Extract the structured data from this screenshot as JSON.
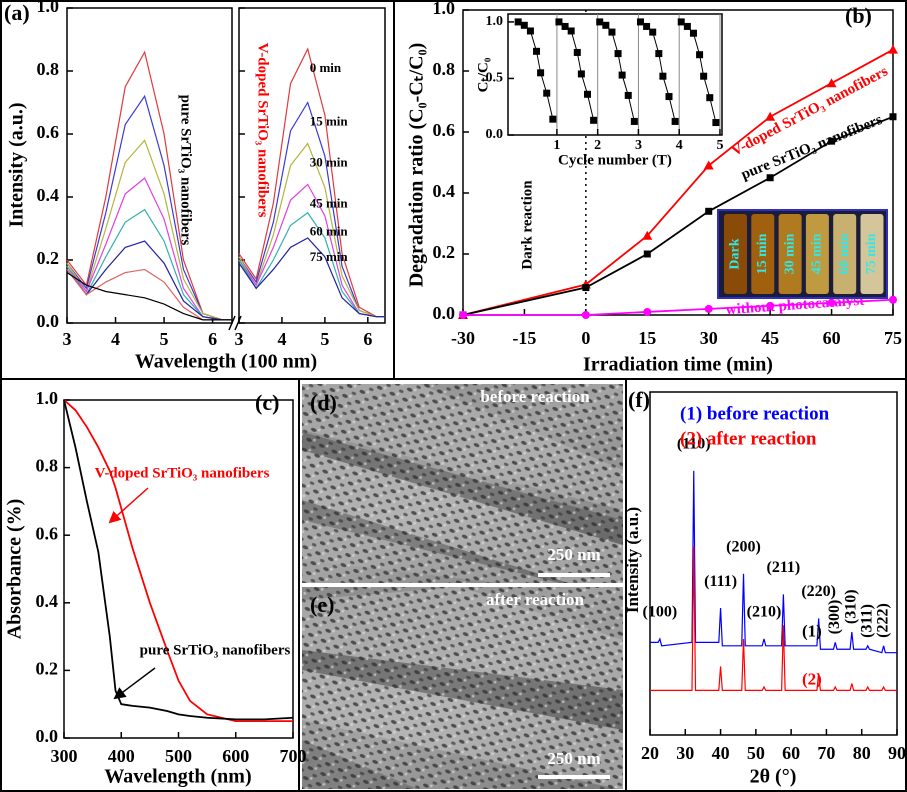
{
  "chart_data": [
    {
      "type": "line",
      "label": "(a)",
      "ylabel": "Intensity (a.u.)",
      "xlabel": "Wavelength (100 nm)",
      "ylim": [
        0,
        1.0
      ],
      "yticks": [
        {
          "value": 0,
          "label": "0.0"
        },
        0.2,
        0.4,
        0.6,
        0.8,
        {
          "value": 1,
          "label": "1.0"
        }
      ],
      "panels": [
        {
          "title": "pure SrTiO₃ nanofibers",
          "title_color": "#000000",
          "xlim": [
            3,
            6.4
          ],
          "xticks": [
            3,
            4,
            5,
            6
          ],
          "x": [
            3,
            3.4,
            3.8,
            4.2,
            4.6,
            5.0,
            5.4,
            5.8,
            6.2,
            6.4
          ],
          "series": [
            {
              "color": "#e0393b",
              "values": [
                0.2,
                0.12,
                0.4,
                0.75,
                0.86,
                0.6,
                0.2,
                0.03,
                0.01,
                0.01
              ]
            },
            {
              "color": "#3a3ad8",
              "values": [
                0.19,
                0.11,
                0.35,
                0.63,
                0.72,
                0.5,
                0.17,
                0.03,
                0.01,
                0.01
              ]
            },
            {
              "color": "#b5b53a",
              "values": [
                0.19,
                0.1,
                0.3,
                0.51,
                0.58,
                0.41,
                0.14,
                0.03,
                0.01,
                0.01
              ]
            },
            {
              "color": "#e040e0",
              "values": [
                0.18,
                0.1,
                0.25,
                0.41,
                0.46,
                0.33,
                0.11,
                0.02,
                0.01,
                0.01
              ]
            },
            {
              "color": "#30b0b0",
              "values": [
                0.18,
                0.09,
                0.21,
                0.32,
                0.36,
                0.26,
                0.09,
                0.02,
                0.01,
                0.01
              ]
            },
            {
              "color": "#2020a0",
              "values": [
                0.17,
                0.09,
                0.17,
                0.24,
                0.26,
                0.19,
                0.07,
                0.02,
                0.01,
                0.01
              ]
            },
            {
              "color": "#e06060",
              "values": [
                0.17,
                0.09,
                0.13,
                0.16,
                0.17,
                0.13,
                0.05,
                0.01,
                0.01,
                0.01
              ]
            },
            {
              "color": "#000000",
              "values": [
                0.16,
                0.12,
                0.1,
                0.09,
                0.08,
                0.06,
                0.03,
                0.01,
                0.01,
                0.01
              ]
            }
          ]
        },
        {
          "title": "V-doped SrTiO₃ nanofibers",
          "title_color": "#ff0000",
          "xlim": [
            3,
            6.4
          ],
          "xticks": [
            3,
            4,
            5,
            6
          ],
          "x": [
            3,
            3.4,
            3.8,
            4.2,
            4.6,
            5.0,
            5.4,
            5.8,
            6.2,
            6.4
          ],
          "series": [
            {
              "name": "0 min",
              "color": "#e0393b",
              "values": [
                0.22,
                0.14,
                0.38,
                0.76,
                0.87,
                0.66,
                0.22,
                0.05,
                0.02,
                0.02
              ]
            },
            {
              "name": "15 min",
              "color": "#3a3ad8",
              "values": [
                0.21,
                0.13,
                0.32,
                0.61,
                0.7,
                0.53,
                0.18,
                0.04,
                0.02,
                0.02
              ]
            },
            {
              "name": "30 min",
              "color": "#b5b53a",
              "values": [
                0.21,
                0.12,
                0.28,
                0.5,
                0.57,
                0.43,
                0.15,
                0.04,
                0.02,
                0.02
              ]
            },
            {
              "name": "45 min",
              "color": "#e040e0",
              "values": [
                0.2,
                0.12,
                0.24,
                0.39,
                0.44,
                0.34,
                0.12,
                0.03,
                0.02,
                0.02
              ]
            },
            {
              "name": "60 min",
              "color": "#30b0b0",
              "values": [
                0.2,
                0.11,
                0.2,
                0.31,
                0.35,
                0.27,
                0.1,
                0.03,
                0.02,
                0.02
              ]
            },
            {
              "name": "75 min",
              "color": "#2020a0",
              "values": [
                0.19,
                0.11,
                0.17,
                0.24,
                0.27,
                0.21,
                0.08,
                0.03,
                0.02,
                0.02
              ]
            }
          ]
        }
      ]
    },
    {
      "type": "line",
      "label": "(b)",
      "ylabel": "Degradation ratio (C₀-Cₜ/C₀)",
      "xlabel": "Irradiation time (min)",
      "xlim": [
        -30,
        75
      ],
      "xticks": [
        -30,
        -15,
        0,
        15,
        30,
        45,
        60,
        75
      ],
      "ylim": [
        0,
        1.0
      ],
      "yticks": [
        {
          "value": 0,
          "label": "0.0"
        },
        0.2,
        0.4,
        0.6,
        0.8,
        {
          "value": 1,
          "label": "1.0"
        }
      ],
      "dark_reaction": {
        "text": "Dark reaction",
        "x": 0
      },
      "x": [
        -30,
        0,
        15,
        30,
        45,
        60,
        75
      ],
      "series": [
        {
          "name": "V-doped SrTiO₃ nanofibers",
          "color": "#ff0000",
          "marker": "triangle",
          "values": [
            0.0,
            0.1,
            0.26,
            0.49,
            0.65,
            0.76,
            0.87
          ]
        },
        {
          "name": "pure SrTiO₃ nanofibers",
          "color": "#000000",
          "marker": "square",
          "values": [
            0.0,
            0.09,
            0.2,
            0.34,
            0.45,
            0.57,
            0.65
          ]
        },
        {
          "name": "without photocatalyst",
          "color": "#ff00ff",
          "marker": "circle",
          "values": [
            0.0,
            0.0,
            0.01,
            0.02,
            0.03,
            0.04,
            0.05
          ]
        }
      ],
      "inset": {
        "xlabel": "Cycle number (T)",
        "ylabel": "Cₜ/C₀",
        "xlim": [
          -0.2,
          5.05
        ],
        "xticks": [
          1,
          2,
          3,
          4,
          5
        ],
        "ylim": [
          0,
          1.07
        ],
        "yticks": [
          {
            "value": 0,
            "label": "0.0"
          },
          0.5,
          {
            "value": 1,
            "label": "1.0"
          }
        ],
        "series": [
          {
            "color": "#000000",
            "marker": "square",
            "x": [
              0.05,
              0.2,
              0.35,
              0.5,
              0.6,
              0.75,
              0.9
            ],
            "values": [
              1.0,
              0.97,
              0.92,
              0.74,
              0.55,
              0.37,
              0.14
            ]
          },
          {
            "color": "#000000",
            "marker": "square",
            "x": [
              1.05,
              1.2,
              1.35,
              1.5,
              1.6,
              1.75,
              1.9
            ],
            "values": [
              1.0,
              0.96,
              0.92,
              0.73,
              0.54,
              0.36,
              0.13
            ]
          },
          {
            "color": "#000000",
            "marker": "square",
            "x": [
              2.05,
              2.2,
              2.35,
              2.5,
              2.6,
              2.75,
              2.9
            ],
            "values": [
              1.0,
              0.97,
              0.91,
              0.72,
              0.53,
              0.35,
              0.12
            ]
          },
          {
            "color": "#000000",
            "marker": "square",
            "x": [
              3.05,
              3.2,
              3.35,
              3.5,
              3.6,
              3.75,
              3.9
            ],
            "values": [
              1.0,
              0.96,
              0.91,
              0.72,
              0.52,
              0.34,
              0.12
            ]
          },
          {
            "color": "#000000",
            "marker": "square",
            "x": [
              4.05,
              4.2,
              4.35,
              4.5,
              4.6,
              4.75,
              4.9
            ],
            "values": [
              1.0,
              0.96,
              0.9,
              0.71,
              0.52,
              0.33,
              0.11
            ]
          }
        ]
      },
      "photo": {
        "labels": [
          "Dark",
          "15 min",
          "30 min",
          "45 min",
          "60 min",
          "75 min"
        ]
      }
    },
    {
      "type": "line",
      "label": "(c)",
      "ylabel": "Absorbance (%)",
      "xlabel": "Wavelength (nm)",
      "xlim": [
        300,
        700
      ],
      "xticks": [
        300,
        400,
        500,
        600,
        700
      ],
      "ylim": [
        0,
        1.0
      ],
      "yticks": [
        {
          "value": 0,
          "label": "0.0"
        },
        0.2,
        0.4,
        0.6,
        0.8,
        {
          "value": 1,
          "label": "1.0"
        }
      ],
      "x": [
        300,
        320,
        340,
        360,
        380,
        390,
        400,
        420,
        450,
        480,
        500,
        520,
        550,
        600,
        650,
        700
      ],
      "series": [
        {
          "name": "V-doped SrTiO₃ nanofibers",
          "color": "#ff0000",
          "values": [
            1.0,
            0.97,
            0.92,
            0.86,
            0.79,
            0.74,
            0.68,
            0.56,
            0.4,
            0.26,
            0.17,
            0.11,
            0.07,
            0.05,
            0.05,
            0.05
          ]
        },
        {
          "name": "pure SrTiO₃ nanofibers",
          "color": "#000000",
          "values": [
            1.0,
            0.86,
            0.7,
            0.55,
            0.3,
            0.14,
            0.1,
            0.095,
            0.09,
            0.08,
            0.07,
            0.065,
            0.06,
            0.055,
            0.055,
            0.06
          ]
        }
      ]
    },
    {
      "type": "line",
      "label": "(f)",
      "ylabel": "Intensity (a.u.)",
      "xlabel": "2θ (°)",
      "xlim": [
        20,
        90
      ],
      "xticks": [
        20,
        30,
        40,
        50,
        60,
        70,
        80,
        90
      ],
      "ylim": [
        0,
        100
      ],
      "x": [
        20,
        22.3,
        22.8,
        23.3,
        31.9,
        32.4,
        32.9,
        39.5,
        40,
        40.5,
        46,
        46.5,
        47,
        51.8,
        52.3,
        52.8,
        57.3,
        57.8,
        58.3,
        67.3,
        67.8,
        68.3,
        72,
        72.5,
        73,
        76.7,
        77.2,
        77.7,
        81.2,
        81.7,
        82.2,
        85.7,
        86.2,
        86.7,
        90
      ],
      "series": [
        {
          "name": "(1) before reaction",
          "label": "(1)",
          "color": "#0000ff",
          "values": [
            27,
            27,
            28,
            26,
            27,
            77,
            27,
            27,
            37,
            26,
            26,
            47,
            26,
            26,
            28,
            26,
            26,
            41,
            26,
            26,
            34,
            25,
            25,
            27,
            25,
            25,
            30,
            25,
            25,
            26,
            25,
            24,
            26,
            24,
            24
          ]
        },
        {
          "name": "(2) after reaction",
          "label": "(2)",
          "color": "#ff0000",
          "values": [
            13,
            13,
            13,
            13,
            13,
            55,
            13,
            13,
            20,
            13,
            13,
            28,
            13,
            13,
            14,
            13,
            13,
            32,
            13,
            13,
            18,
            13,
            13,
            14,
            13,
            13,
            15,
            13,
            13,
            14,
            13,
            13,
            14,
            13,
            13
          ]
        }
      ],
      "peaks": [
        {
          "label": "(100)",
          "x": 22.8
        },
        {
          "label": "(110)",
          "x": 32.4
        },
        {
          "label": "(111)",
          "x": 40
        },
        {
          "label": "(200)",
          "x": 46.5
        },
        {
          "label": "(210)",
          "x": 52.3
        },
        {
          "label": "(211)",
          "x": 57.8
        },
        {
          "label": "(220)",
          "x": 67.8
        },
        {
          "label": "(300)",
          "x": 72.5
        },
        {
          "label": "(310)",
          "x": 77.2
        },
        {
          "label": "(311)",
          "x": 81.7
        },
        {
          "label": "(222)",
          "x": 86.2
        }
      ]
    }
  ],
  "images": [
    {
      "label": "(d)",
      "caption": "before reaction",
      "scale_bar": "250 nm"
    },
    {
      "label": "(e)",
      "caption": "after reaction",
      "scale_bar": "250 nm"
    }
  ]
}
